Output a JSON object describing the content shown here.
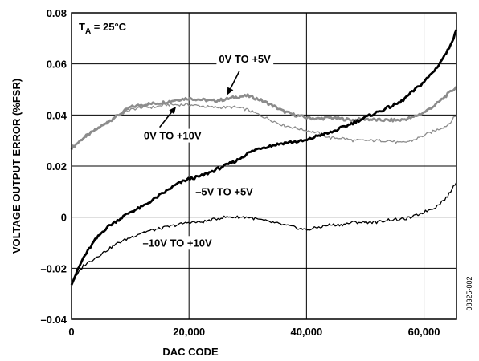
{
  "chart_data": {
    "type": "line",
    "xlabel": "DAC CODE",
    "ylabel": "VOLTAGE OUTPUT ERROR (%FSR)",
    "xlim": [
      0,
      65535
    ],
    "ylim": [
      -0.04,
      0.08
    ],
    "xticks": [
      0,
      20000,
      40000,
      60000
    ],
    "xtick_labels": [
      "0",
      "20,000",
      "40,000",
      "60,000"
    ],
    "yticks": [
      -0.04,
      -0.02,
      0,
      0.02,
      0.04,
      0.06,
      0.08
    ],
    "ytick_labels": [
      "–0.04",
      "–0.02",
      "0",
      "0.02",
      "0.04",
      "0.06",
      "0.08"
    ],
    "grid": true,
    "condition_label": {
      "main": "T",
      "sub": "A",
      "rest": " = 25°C"
    },
    "figure_id": "08325-002",
    "series": [
      {
        "name": "0V TO +5V",
        "color": "#8c8c8c",
        "weight": "thick",
        "x": [
          0,
          2000,
          4000,
          6000,
          8000,
          10000,
          12000,
          14000,
          16000,
          18000,
          20000,
          22000,
          24000,
          26000,
          28000,
          30000,
          32000,
          34000,
          36000,
          38000,
          40000,
          42000,
          44000,
          46000,
          48000,
          50000,
          52000,
          54000,
          56000,
          58000,
          60000,
          62000,
          64000,
          65535
        ],
        "y": [
          0.027,
          0.031,
          0.034,
          0.037,
          0.04,
          0.043,
          0.044,
          0.0445,
          0.045,
          0.046,
          0.0465,
          0.046,
          0.0455,
          0.046,
          0.047,
          0.0475,
          0.046,
          0.044,
          0.0415,
          0.04,
          0.039,
          0.0385,
          0.039,
          0.0385,
          0.038,
          0.0385,
          0.038,
          0.038,
          0.038,
          0.039,
          0.041,
          0.044,
          0.048,
          0.051
        ]
      },
      {
        "name": "0V TO +10V",
        "color": "#8c8c8c",
        "weight": "thin",
        "x": [
          0,
          2000,
          4000,
          6000,
          8000,
          10000,
          12000,
          14000,
          16000,
          18000,
          20000,
          22000,
          24000,
          26000,
          28000,
          30000,
          32000,
          34000,
          36000,
          38000,
          40000,
          42000,
          44000,
          46000,
          48000,
          50000,
          52000,
          54000,
          56000,
          58000,
          60000,
          62000,
          64000,
          65535
        ],
        "y": [
          0.027,
          0.031,
          0.034,
          0.037,
          0.04,
          0.042,
          0.043,
          0.043,
          0.044,
          0.044,
          0.044,
          0.0435,
          0.043,
          0.043,
          0.043,
          0.042,
          0.04,
          0.038,
          0.036,
          0.035,
          0.034,
          0.033,
          0.031,
          0.031,
          0.03,
          0.03,
          0.03,
          0.03,
          0.029,
          0.03,
          0.032,
          0.034,
          0.036,
          0.04
        ]
      },
      {
        "name": "–5V TO +5V",
        "color": "#000000",
        "weight": "thick",
        "x": [
          0,
          2000,
          4000,
          6000,
          8000,
          10000,
          12000,
          14000,
          16000,
          18000,
          20000,
          22000,
          24000,
          26000,
          28000,
          30000,
          32000,
          34000,
          36000,
          38000,
          40000,
          42000,
          44000,
          46000,
          48000,
          50000,
          52000,
          54000,
          56000,
          58000,
          60000,
          62000,
          64000,
          65535
        ],
        "y": [
          -0.026,
          -0.016,
          -0.009,
          -0.004,
          -0.001,
          0.002,
          0.004,
          0.007,
          0.01,
          0.013,
          0.015,
          0.016,
          0.018,
          0.02,
          0.022,
          0.025,
          0.027,
          0.028,
          0.029,
          0.0295,
          0.03,
          0.032,
          0.033,
          0.035,
          0.037,
          0.039,
          0.041,
          0.043,
          0.045,
          0.049,
          0.053,
          0.058,
          0.065,
          0.073
        ]
      },
      {
        "name": "–10V TO +10V",
        "color": "#000000",
        "weight": "thin",
        "x": [
          0,
          2000,
          4000,
          6000,
          8000,
          10000,
          12000,
          14000,
          16000,
          18000,
          20000,
          22000,
          24000,
          26000,
          28000,
          30000,
          32000,
          34000,
          36000,
          38000,
          40000,
          42000,
          44000,
          46000,
          48000,
          50000,
          52000,
          54000,
          56000,
          58000,
          60000,
          62000,
          64000,
          65535
        ],
        "y": [
          -0.026,
          -0.019,
          -0.016,
          -0.013,
          -0.01,
          -0.008,
          -0.006,
          -0.005,
          -0.004,
          -0.003,
          -0.002,
          -0.002,
          -0.001,
          0.0,
          0.0,
          0.0,
          -0.001,
          -0.002,
          -0.003,
          -0.004,
          -0.005,
          -0.004,
          -0.003,
          -0.003,
          -0.002,
          -0.002,
          -0.002,
          -0.001,
          -0.001,
          0.0,
          0.002,
          0.004,
          0.008,
          0.014
        ]
      }
    ],
    "annotations": [
      {
        "text": "0V TO +5V",
        "series": "0V TO +5V",
        "arrow": true,
        "label_x": 29500,
        "label_y": 0.0605,
        "arrow_from": [
          28600,
          0.0573
        ],
        "arrow_to": [
          26500,
          0.0478
        ]
      },
      {
        "text": "0V TO +10V",
        "series": "0V TO +10V",
        "arrow": true,
        "label_x": 17200,
        "label_y": 0.0305,
        "arrow_from": [
          15000,
          0.0352
        ],
        "arrow_to": [
          17800,
          0.0433
        ]
      },
      {
        "text": "–5V TO +5V",
        "series": "–5V TO +5V",
        "arrow": false,
        "label_x": 26000,
        "label_y": 0.0085
      },
      {
        "text": "–10V TO +10V",
        "series": "–10V TO +10V",
        "arrow": false,
        "label_x": 18000,
        "label_y": -0.0115
      }
    ]
  }
}
